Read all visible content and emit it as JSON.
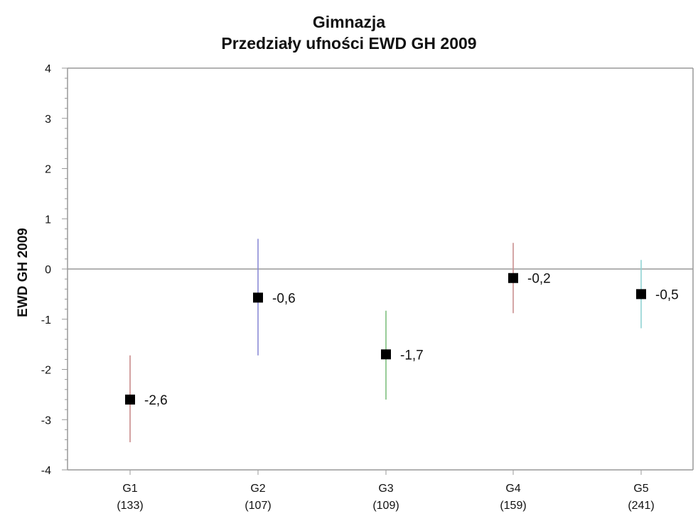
{
  "chart_data": {
    "type": "scatter",
    "title_lines": [
      "Gimnazja",
      "Przedziały ufności EWD GH 2009"
    ],
    "ylabel": "EWD GH 2009",
    "xlabel": "",
    "ylim": [
      -4,
      4
    ],
    "yticks": [
      "-4",
      "-3",
      "-2",
      "-1",
      "0",
      "1",
      "2",
      "3",
      "4"
    ],
    "grid": false,
    "reference_line": 0,
    "points": [
      {
        "name": "G1",
        "count": "(133)",
        "value": -2.6,
        "label": "-2,6",
        "lower": -3.45,
        "upper": -1.72,
        "color": "#c98a8a"
      },
      {
        "name": "G2",
        "count": "(107)",
        "value": -0.57,
        "label": "-0,6",
        "lower": -1.72,
        "upper": 0.6,
        "color": "#8a8ad6"
      },
      {
        "name": "G3",
        "count": "(109)",
        "value": -1.7,
        "label": "-1,7",
        "lower": -2.6,
        "upper": -0.83,
        "color": "#7fbf7f"
      },
      {
        "name": "G4",
        "count": "(159)",
        "value": -0.18,
        "label": "-0,2",
        "lower": -0.88,
        "upper": 0.52,
        "color": "#c99090"
      },
      {
        "name": "G5",
        "count": "(241)",
        "value": -0.5,
        "label": "-0,5",
        "lower": -1.18,
        "upper": 0.18,
        "color": "#8fd3d3"
      }
    ],
    "colors": {
      "axis": "#999999",
      "marker": "#000000",
      "text": "#111111"
    }
  }
}
